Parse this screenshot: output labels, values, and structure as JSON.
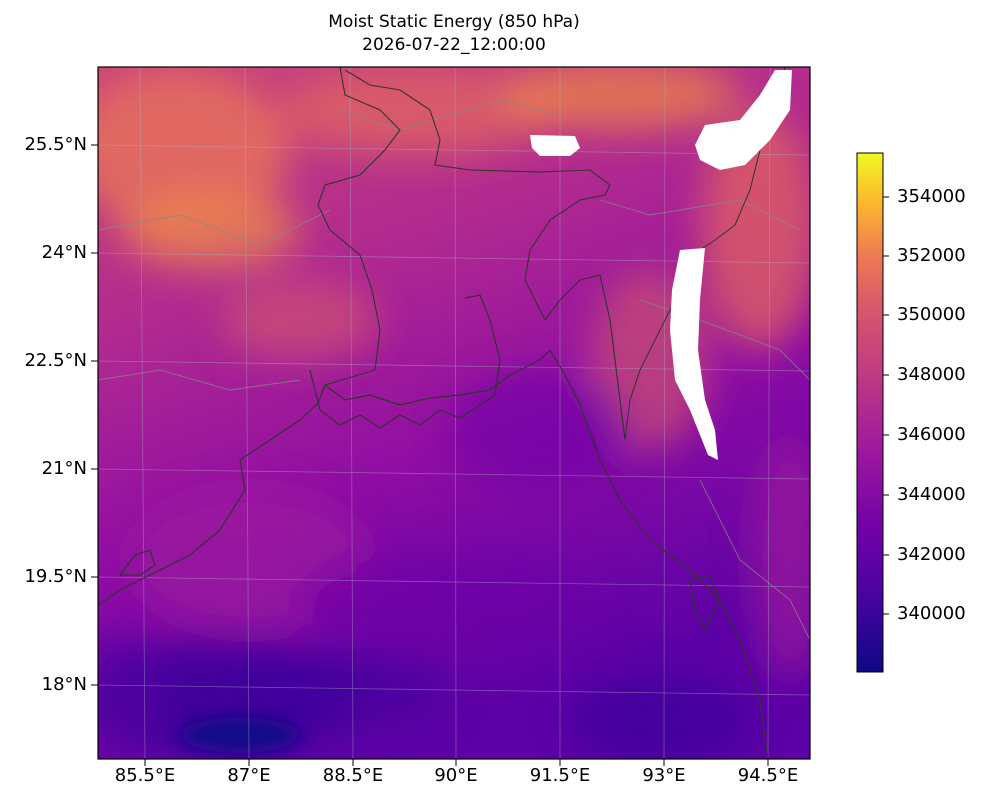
{
  "figure": {
    "title": "Moist Static Energy (850 hPa)",
    "subtitle": "2026-07-22_12:00:00"
  },
  "map": {
    "variable": "Moist Static Energy",
    "pressure_level": "850 hPa",
    "colormap": "plasma",
    "colors": {
      "low": "#0d0887",
      "mid_low": "#6a00a8",
      "mid": "#b12a90",
      "mid_high": "#e16462",
      "high": "#fca636",
      "max": "#f0f921",
      "masked": "#ffffff",
      "coastline": "#333333",
      "borders": "#888888",
      "gridlines": "#b0b0c8"
    },
    "lat_ticks": [
      "25.5°N",
      "24°N",
      "22.5°N",
      "21°N",
      "19.5°N",
      "18°N"
    ],
    "lon_ticks": [
      "85.5°E",
      "87°E",
      "88.5°E",
      "90°E",
      "91.5°E",
      "93°E",
      "94.5°E"
    ]
  },
  "colorbar": {
    "range": [
      338000,
      355500
    ],
    "ticks": [
      "354000",
      "352000",
      "350000",
      "348000",
      "346000",
      "344000",
      "342000",
      "340000"
    ]
  }
}
